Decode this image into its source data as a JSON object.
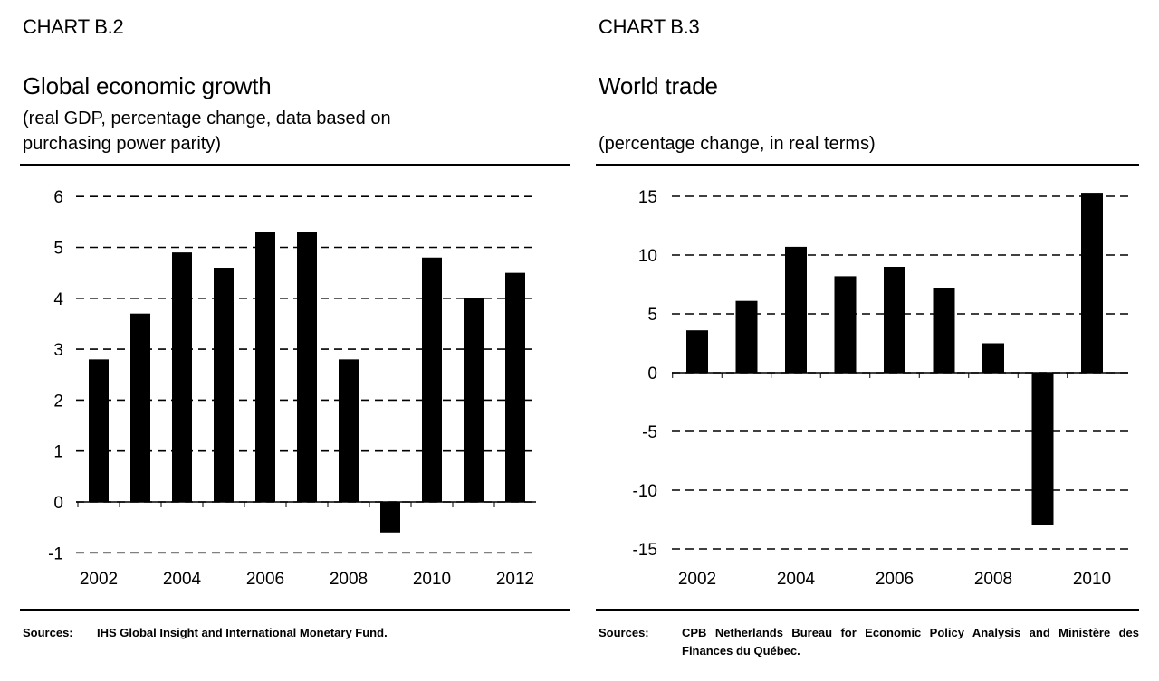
{
  "panels": [
    {
      "chart_number": "CHART B.2",
      "title": "Global economic growth",
      "subtitle": "(real GDP, percentage change, data based on\npurchasing power parity)",
      "source_label": "Sources:",
      "source_text": "IHS Global Insight and International Monetary Fund."
    },
    {
      "chart_number": "CHART B.3",
      "title": "World trade",
      "subtitle": "(percentage change, in real terms)",
      "source_label": "Sources:",
      "source_text": "CPB Netherlands Bureau for Economic Policy Analysis and Ministère des Finances du Québec."
    }
  ],
  "chart_data": [
    {
      "type": "bar",
      "title": "Global economic growth",
      "subtitle": "(real GDP, percentage change, data based on purchasing power parity)",
      "categories": [
        "2002",
        "2003",
        "2004",
        "2005",
        "2006",
        "2007",
        "2008",
        "2009",
        "2010",
        "2011",
        "2012"
      ],
      "values": [
        2.8,
        3.7,
        4.9,
        4.6,
        5.3,
        5.3,
        2.8,
        -0.6,
        4.8,
        4.0,
        4.5
      ],
      "x_tick_labels": [
        "2002",
        "2004",
        "2006",
        "2008",
        "2010",
        "2012"
      ],
      "y_ticks": [
        6,
        5,
        4,
        3,
        2,
        1,
        0,
        -1
      ],
      "ylim": [
        -1,
        6
      ],
      "grid": "dashed horizontal",
      "bar_color": "#000000"
    },
    {
      "type": "bar",
      "title": "World trade",
      "subtitle": "(percentage change, in real terms)",
      "categories": [
        "2002",
        "2003",
        "2004",
        "2005",
        "2006",
        "2007",
        "2008",
        "2009",
        "2010"
      ],
      "values": [
        3.6,
        6.1,
        10.7,
        8.2,
        9.0,
        7.2,
        2.5,
        -13.0,
        15.3
      ],
      "x_tick_labels": [
        "2002",
        "2004",
        "2006",
        "2008",
        "2010"
      ],
      "y_ticks": [
        15,
        10,
        5,
        0,
        -5,
        -10,
        -15
      ],
      "ylim": [
        -15,
        15
      ],
      "grid": "dashed horizontal",
      "bar_color": "#000000"
    }
  ]
}
